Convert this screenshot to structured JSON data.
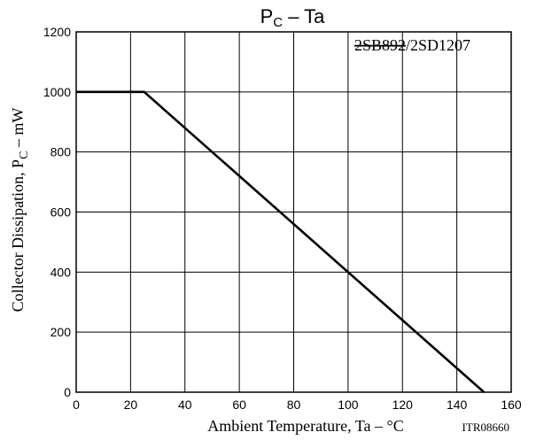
{
  "chart_data": {
    "type": "line",
    "title": "PC – Ta",
    "title_parts": {
      "main": "P",
      "sub": "C",
      "rest": " – Ta"
    },
    "xlabel": "Ambient Temperature, Ta – °C",
    "ylabel": "Collector Dissipation, PC – mW",
    "ylabel_parts": {
      "before": "Collector Dissipation, P",
      "sub": "C",
      "after": " – mW"
    },
    "xlim": [
      0,
      160
    ],
    "ylim": [
      0,
      1200
    ],
    "x_ticks": [
      0,
      20,
      40,
      60,
      80,
      100,
      120,
      140,
      160
    ],
    "y_ticks": [
      0,
      200,
      400,
      600,
      800,
      1000,
      1200
    ],
    "grid": true,
    "series": [
      {
        "x": [
          0,
          25,
          150
        ],
        "y": [
          1000,
          1000,
          0
        ]
      }
    ],
    "annotation": {
      "struck": "2SB892",
      "separator": "/",
      "rest": "2SD1207"
    },
    "code": "ITR08660",
    "colors": {
      "line": "#000000",
      "grid": "#000000",
      "background": "#ffffff"
    }
  }
}
